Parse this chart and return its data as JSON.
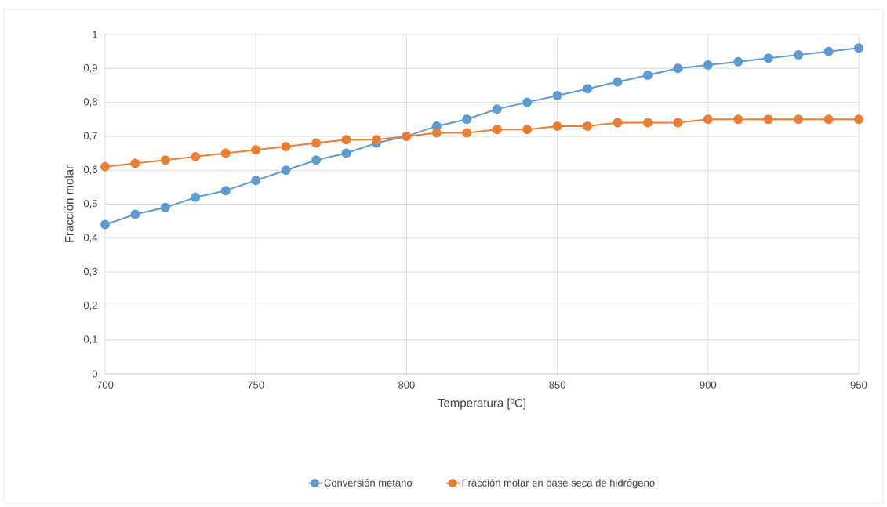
{
  "chart_data": {
    "type": "line",
    "xlabel": "Temperatura [ºC]",
    "ylabel": "Fracción molar",
    "x": [
      700,
      710,
      720,
      730,
      740,
      750,
      760,
      770,
      780,
      790,
      800,
      810,
      820,
      830,
      840,
      850,
      860,
      870,
      880,
      890,
      900,
      910,
      920,
      930,
      940,
      950
    ],
    "series": [
      {
        "name": "Conversión metano",
        "color": "#5b9bd5",
        "values": [
          0.44,
          0.47,
          0.49,
          0.52,
          0.54,
          0.57,
          0.6,
          0.63,
          0.65,
          0.68,
          0.7,
          0.73,
          0.75,
          0.78,
          0.8,
          0.82,
          0.84,
          0.86,
          0.88,
          0.9,
          0.91,
          0.92,
          0.93,
          0.94,
          0.95,
          0.96
        ]
      },
      {
        "name": "Fracción molar en base seca de hidrógeno",
        "color": "#ed7d31",
        "values": [
          0.61,
          0.62,
          0.63,
          0.64,
          0.65,
          0.66,
          0.67,
          0.68,
          0.69,
          0.69,
          0.7,
          0.71,
          0.71,
          0.72,
          0.72,
          0.73,
          0.73,
          0.74,
          0.74,
          0.74,
          0.75,
          0.75,
          0.75,
          0.75,
          0.75,
          0.75
        ]
      }
    ],
    "xlim": [
      700,
      950
    ],
    "xticks": [
      700,
      750,
      800,
      850,
      900,
      950
    ],
    "ylim": [
      0,
      1
    ],
    "yticks": [
      0,
      {
        "value": 0.1,
        "label": "0,1"
      },
      {
        "value": 0.2,
        "label": "0,2"
      },
      {
        "value": 0.3,
        "label": "0,3"
      },
      {
        "value": 0.4,
        "label": "0,4"
      },
      {
        "value": 0.5,
        "label": "0,5"
      },
      {
        "value": 0.6,
        "label": "0,6"
      },
      {
        "value": 0.7,
        "label": "0,7"
      },
      {
        "value": 0.8,
        "label": "0,8"
      },
      {
        "value": 0.9,
        "label": "0,9"
      },
      1
    ],
    "grid": true,
    "legend": "bottom",
    "marker": "circle",
    "line_style": "solid"
  }
}
